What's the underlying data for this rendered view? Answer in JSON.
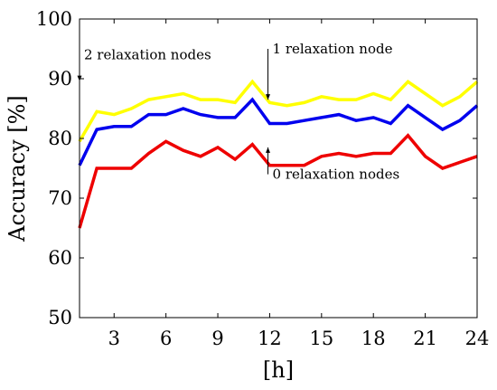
{
  "chart_data": {
    "type": "line",
    "xlabel": "[h]",
    "ylabel": "Accuracy [%]",
    "xlim": [
      1,
      24
    ],
    "ylim": [
      50,
      100
    ],
    "xticks": [
      3,
      6,
      9,
      12,
      15,
      18,
      21,
      24
    ],
    "yticks": [
      50,
      60,
      70,
      80,
      90,
      100
    ],
    "grid": false,
    "legend": "none",
    "x": [
      1,
      2,
      3,
      4,
      5,
      6,
      7,
      8,
      9,
      10,
      11,
      12,
      13,
      14,
      15,
      16,
      17,
      18,
      19,
      20,
      21,
      22,
      23,
      24
    ],
    "series": [
      {
        "color": "#ffff00",
        "values": [
          79.5,
          84.5,
          84,
          85,
          86.5,
          87,
          87.5,
          86.5,
          86.5,
          86,
          89.5,
          86,
          85.5,
          86,
          87,
          86.5,
          86.5,
          87.5,
          86.5,
          89.5,
          87.5,
          85.5,
          87,
          89.5
        ]
      },
      {
        "color": "#0000ee",
        "values": [
          75.5,
          81.5,
          82,
          82,
          84,
          84,
          85,
          84,
          83.5,
          83.5,
          86.5,
          82.5,
          82.5,
          83,
          83.5,
          84,
          83,
          83.5,
          82.5,
          85.5,
          83.5,
          81.5,
          83,
          85.5
        ]
      },
      {
        "color": "#ee0000",
        "values": [
          65,
          75,
          75,
          75,
          77.5,
          79.5,
          78,
          77,
          78.5,
          76.5,
          79,
          75.5,
          75.5,
          75.5,
          77,
          77.5,
          77,
          77.5,
          77.5,
          80.5,
          77,
          75,
          76,
          77
        ]
      }
    ],
    "annotations": [
      {
        "text": "2 relaxation nodes",
        "arrow_x": 1,
        "arrow_from": 94,
        "arrow_to": 89.6,
        "anchor": "right-of-arrow"
      },
      {
        "text": "1 relaxation node",
        "arrow_x": 11.9,
        "arrow_from": 95,
        "arrow_to": 86.5,
        "anchor": "right-of-arrow"
      },
      {
        "text": "0 relaxation nodes",
        "arrow_x": 11.9,
        "arrow_from": 74,
        "arrow_to": 78.5,
        "anchor": "right-of-arrow"
      }
    ]
  }
}
